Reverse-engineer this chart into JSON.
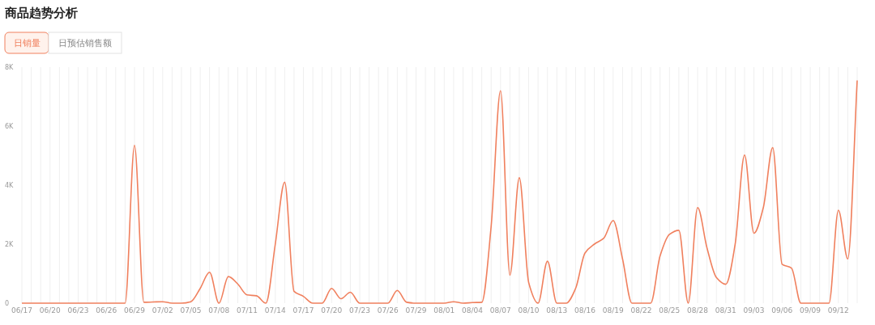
{
  "chart_data": {
    "type": "line",
    "title": "商品趋势分析",
    "annotations": [
      "日销量",
      "日预估销售额"
    ],
    "categories": [
      "06/17",
      null,
      null,
      "06/20",
      null,
      null,
      "06/23",
      null,
      null,
      "06/26",
      null,
      null,
      "06/29",
      null,
      null,
      "07/02",
      null,
      null,
      "07/05",
      null,
      null,
      "07/08",
      null,
      null,
      "07/11",
      null,
      null,
      "07/14",
      null,
      null,
      "07/17",
      null,
      null,
      "07/20",
      null,
      null,
      "07/23",
      null,
      null,
      "07/26",
      null,
      null,
      "07/29",
      null,
      null,
      "08/01",
      null,
      null,
      "08/04",
      null,
      null,
      "08/07",
      null,
      null,
      "08/10",
      null,
      null,
      "08/13",
      null,
      null,
      "08/16",
      null,
      null,
      "08/19",
      null,
      null,
      "08/22",
      null,
      null,
      "08/25",
      null,
      null,
      "08/28",
      null,
      null,
      "08/31",
      null,
      null,
      "09/03",
      null,
      null,
      "09/06",
      null,
      null,
      "09/09",
      null,
      null,
      "09/12",
      null,
      null
    ],
    "series": [
      {
        "color": "#f0805e",
        "values": [
          0,
          0,
          0,
          0,
          0,
          0,
          0,
          0,
          0,
          0,
          0,
          0,
          5350,
          30,
          40,
          50,
          0,
          0,
          50,
          500,
          1050,
          0,
          900,
          650,
          280,
          250,
          0,
          2000,
          4100,
          400,
          230,
          0,
          0,
          500,
          150,
          370,
          0,
          0,
          0,
          0,
          430,
          30,
          0,
          0,
          0,
          0,
          50,
          0,
          20,
          30,
          2600,
          7200,
          950,
          4250,
          700,
          0,
          1420,
          0,
          0,
          500,
          1700,
          2000,
          2200,
          2800,
          1500,
          0,
          0,
          0,
          1600,
          2330,
          2470,
          0,
          3240,
          1870,
          870,
          640,
          2000,
          5020,
          2370,
          3240,
          5270,
          1320,
          1190,
          0,
          0,
          0,
          0,
          3150,
          1500,
          7550
        ]
      }
    ],
    "ylim": [
      0,
      8000
    ],
    "yticks": [
      0,
      {
        "value": 2000,
        "label": "2K"
      },
      {
        "value": 4000,
        "label": "4K"
      },
      {
        "value": 6000,
        "label": "6K"
      },
      {
        "value": 8000,
        "label": "8K"
      }
    ],
    "grid": "x"
  }
}
